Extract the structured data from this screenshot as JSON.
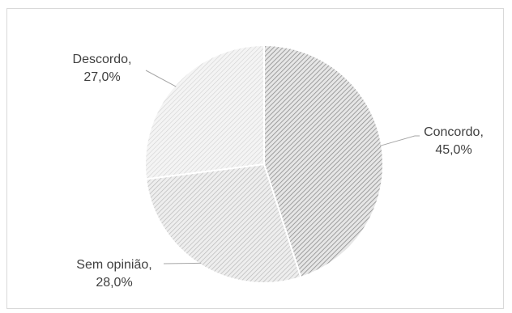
{
  "chart_data": {
    "type": "pie",
    "categories": [
      "Concordo",
      "Sem opinião",
      "Descordo"
    ],
    "values": [
      45.0,
      28.0,
      27.0
    ],
    "labels": [
      {
        "name": "Concordo,",
        "value": "45,0%"
      },
      {
        "name": "Sem opinião,",
        "value": "28,0%"
      },
      {
        "name": "Descordo,",
        "value": "27,0%"
      }
    ],
    "colors": [
      "#9a9a9a",
      "#c4c4c4",
      "#dadada"
    ],
    "start_angle_deg": 0,
    "direction": "clockwise",
    "legend": "none"
  }
}
